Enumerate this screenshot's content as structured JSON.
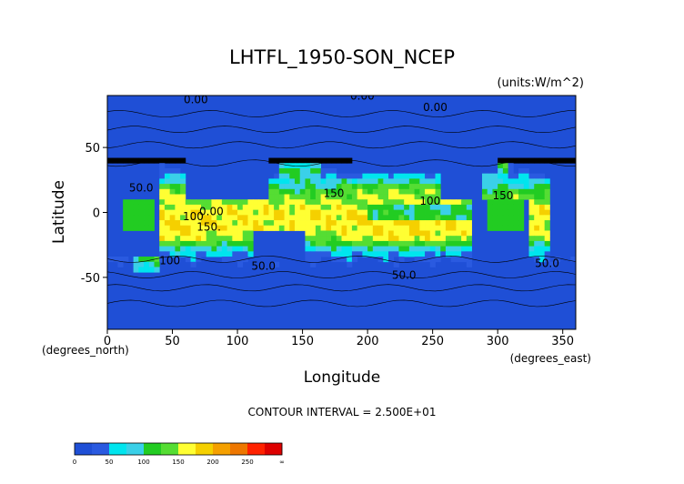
{
  "chart_data": {
    "type": "contour",
    "title": "LHTFL_1950-SON_NCEP",
    "units": "(units:W/m^2)",
    "xlabel": "Longitude",
    "ylabel": "Latitude",
    "x_unit": "(degrees_east)",
    "y_unit": "(degrees_north)",
    "xlim": [
      0,
      360
    ],
    "ylim": [
      -90,
      90
    ],
    "x_ticks": [
      0,
      50,
      100,
      150,
      200,
      250,
      300,
      350
    ],
    "y_ticks": [
      -50,
      0,
      50
    ],
    "contour_interval_text": "CONTOUR INTERVAL = 2.500E+01",
    "contour_labels": [
      {
        "text": "0.00",
        "lon": 68,
        "lat": 84
      },
      {
        "text": "0.00",
        "lon": 196,
        "lat": 87
      },
      {
        "text": "0.00",
        "lon": 252,
        "lat": 78
      },
      {
        "text": "50.0",
        "lon": 26,
        "lat": 16
      },
      {
        "text": "100",
        "lon": 66,
        "lat": -6
      },
      {
        "text": "0.00",
        "lon": 80,
        "lat": -2
      },
      {
        "text": "150.",
        "lon": 78,
        "lat": -14
      },
      {
        "text": "150",
        "lon": 174,
        "lat": 12
      },
      {
        "text": "100",
        "lon": 248,
        "lat": 6
      },
      {
        "text": "150",
        "lon": 304,
        "lat": 10
      },
      {
        "text": "100",
        "lon": 48,
        "lat": -40
      },
      {
        "text": "50.0",
        "lon": 120,
        "lat": -44
      },
      {
        "text": "50.0",
        "lon": 228,
        "lat": -51
      },
      {
        "text": "50.0",
        "lon": 338,
        "lat": -42
      }
    ],
    "colorbar": {
      "levels": [
        0,
        50,
        100,
        150,
        200,
        250,
        "∞"
      ],
      "tick_labels": [
        "0",
        "50",
        "100",
        "150",
        "200",
        "250",
        "∞"
      ],
      "colors": [
        "#1f4fd6",
        "#2a5ae0",
        "#00e5ee",
        "#3ad0e8",
        "#22cc22",
        "#55dd33",
        "#ffff33",
        "#f5d000",
        "#f5a000",
        "#ee7700",
        "#ff2200",
        "#dd0000"
      ]
    }
  }
}
